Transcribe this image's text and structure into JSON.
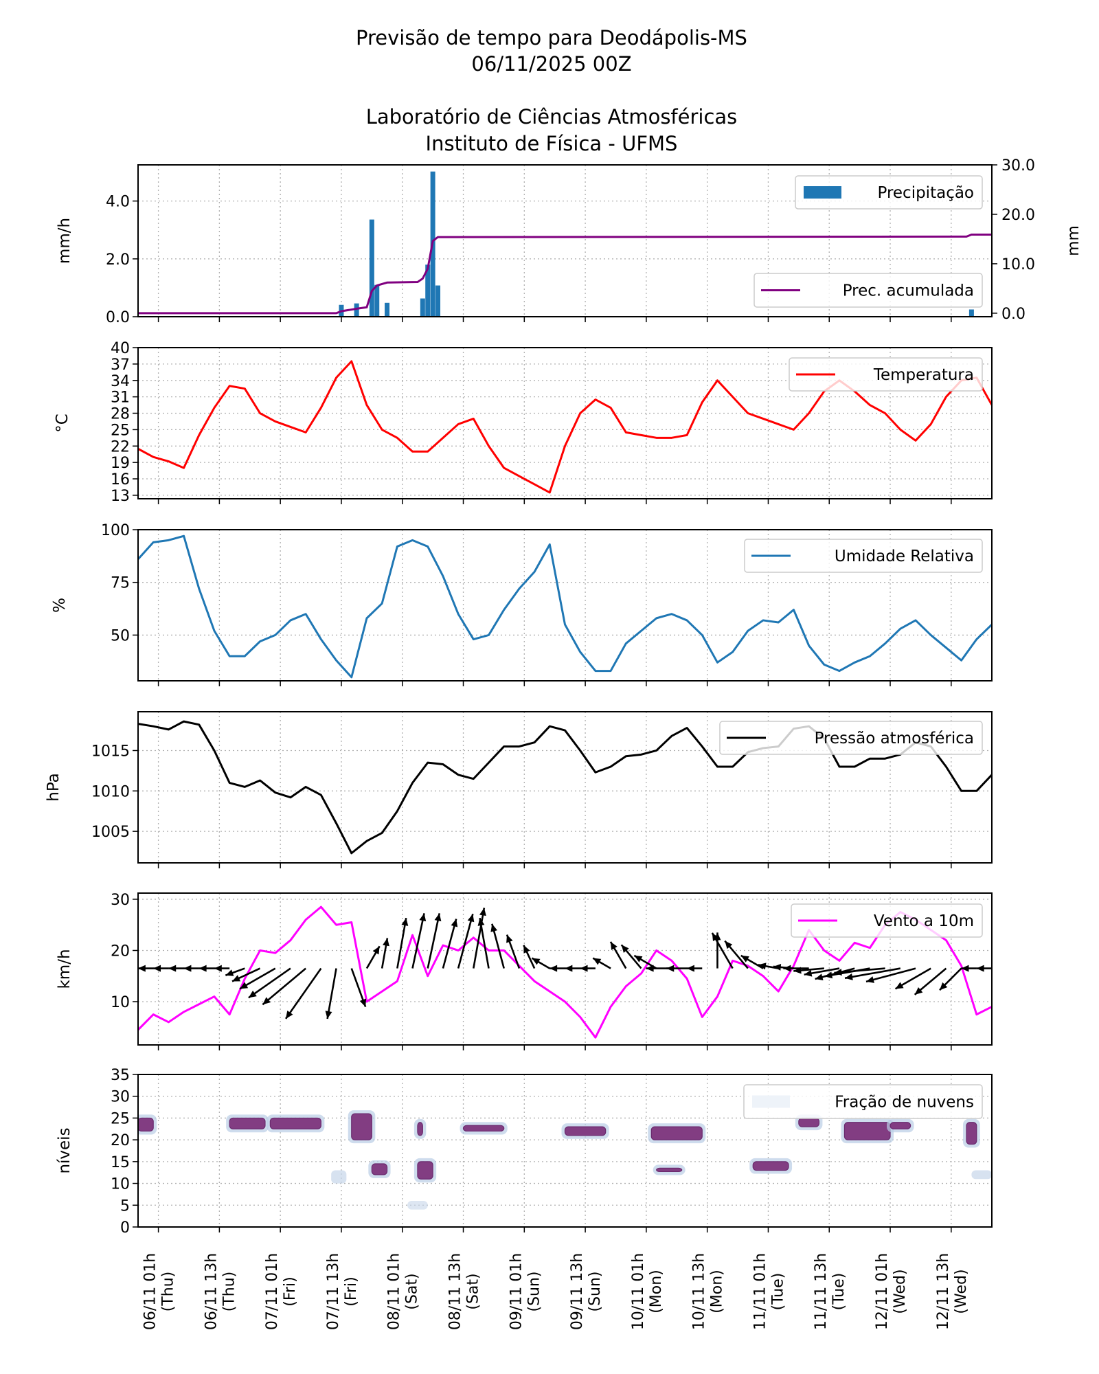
{
  "title": {
    "line1": "Previsão de tempo para Deodápolis-MS",
    "line2": "06/11/2025 00Z",
    "line3": "Laboratório de Ciências Atmosféricas",
    "line4": "Instituto de Física - UFMS"
  },
  "x_axis": {
    "range": [
      "05/11 21h",
      "12/11 21h"
    ],
    "ticks": [
      {
        "date": "06/11 01h",
        "day": "(Thu)"
      },
      {
        "date": "06/11 13h",
        "day": "(Thu)"
      },
      {
        "date": "07/11 01h",
        "day": "(Fri)"
      },
      {
        "date": "07/11 13h",
        "day": "(Fri)"
      },
      {
        "date": "08/11 01h",
        "day": "(Sat)"
      },
      {
        "date": "08/11 13h",
        "day": "(Sat)"
      },
      {
        "date": "09/11 01h",
        "day": "(Sun)"
      },
      {
        "date": "09/11 13h",
        "day": "(Sun)"
      },
      {
        "date": "10/11 01h",
        "day": "(Mon)"
      },
      {
        "date": "10/11 13h",
        "day": "(Mon)"
      },
      {
        "date": "11/11 01h",
        "day": "(Tue)"
      },
      {
        "date": "11/11 13h",
        "day": "(Tue)"
      },
      {
        "date": "12/11 01h",
        "day": "(Wed)"
      },
      {
        "date": "12/11 13h",
        "day": "(Wed)"
      }
    ]
  },
  "times": [
    "05/11 21h",
    "06/11 00h",
    "06/11 03h",
    "06/11 06h",
    "06/11 09h",
    "06/11 12h",
    "06/11 15h",
    "06/11 18h",
    "06/11 21h",
    "07/11 00h",
    "07/11 03h",
    "07/11 06h",
    "07/11 09h",
    "07/11 12h",
    "07/11 15h",
    "07/11 18h",
    "07/11 21h",
    "08/11 00h",
    "08/11 03h",
    "08/11 06h",
    "08/11 09h",
    "08/11 12h",
    "08/11 15h",
    "08/11 18h",
    "08/11 21h",
    "09/11 00h",
    "09/11 03h",
    "09/11 06h",
    "09/11 09h",
    "09/11 12h",
    "09/11 15h",
    "09/11 18h",
    "09/11 21h",
    "10/11 00h",
    "10/11 03h",
    "10/11 06h",
    "10/11 09h",
    "10/11 12h",
    "10/11 15h",
    "10/11 18h",
    "10/11 21h",
    "11/11 00h",
    "11/11 03h",
    "11/11 06h",
    "11/11 09h",
    "11/11 12h",
    "11/11 15h",
    "11/11 18h",
    "11/11 21h",
    "12/11 00h",
    "12/11 03h",
    "12/11 06h",
    "12/11 09h",
    "12/11 12h",
    "12/11 15h",
    "12/11 18h",
    "12/11 21h"
  ],
  "chart_data": [
    {
      "id": "precip",
      "type": "bar",
      "ylabel": "mm/h",
      "ylabel_right": "mm",
      "ylim": [
        0,
        5.25
      ],
      "ylim_right": [
        -0.71,
        30
      ],
      "yticks": [
        "0.0",
        "2.0",
        "4.0"
      ],
      "yticks_right": [
        "0.0",
        "10.0",
        "20.0",
        "30.0"
      ],
      "grid": true,
      "bar_color": "#1f77b4",
      "line_color": "#800080",
      "bars": {
        "name": "Precipitação",
        "points": [
          [
            "07/11 13h",
            0.41
          ],
          [
            "07/11 16h",
            0.46
          ],
          [
            "07/11 19h",
            3.36
          ],
          [
            "07/11 20h",
            1.1
          ],
          [
            "07/11 22h",
            0.48
          ],
          [
            "08/11 05h",
            0.63
          ],
          [
            "08/11 06h",
            1.8
          ],
          [
            "08/11 07h",
            5.02
          ],
          [
            "08/11 08h",
            1.08
          ],
          [
            "12/11 17h",
            0.25
          ]
        ]
      },
      "accumulated": {
        "name": "Prec. acumulada",
        "points": [
          [
            "05/11 21h",
            0
          ],
          [
            "07/11 12h",
            0
          ],
          [
            "07/11 13h",
            0.4
          ],
          [
            "07/11 16h",
            0.9
          ],
          [
            "07/11 18h",
            1.2
          ],
          [
            "07/11 19h",
            4.5
          ],
          [
            "07/11 20h",
            5.6
          ],
          [
            "07/11 22h",
            6.2
          ],
          [
            "08/11 04h",
            6.3
          ],
          [
            "08/11 05h",
            7.0
          ],
          [
            "08/11 06h",
            9.0
          ],
          [
            "08/11 07h",
            14.6
          ],
          [
            "08/11 08h",
            15.4
          ],
          [
            "12/11 16h",
            15.5
          ],
          [
            "12/11 17h",
            15.9
          ],
          [
            "12/11 21h",
            15.9
          ]
        ]
      },
      "legend": [
        "upper-right",
        "lower-right"
      ]
    },
    {
      "id": "temp",
      "type": "line",
      "ylabel": "$^\\circ$C",
      "ylabel_display": "°C",
      "ylim": [
        12.36,
        40
      ],
      "yticks": [
        "13",
        "16",
        "19",
        "22",
        "25",
        "28",
        "31",
        "34",
        "37",
        "40"
      ],
      "grid": true,
      "color": "#ff0000",
      "series": [
        {
          "name": "Temperatura",
          "values": [
            21.5,
            20,
            19.2,
            18,
            24,
            29,
            33,
            32.5,
            28,
            26.5,
            25.5,
            24.5,
            29,
            34.5,
            37.5,
            29.5,
            25,
            23.5,
            21,
            21,
            23.5,
            26,
            27,
            22,
            18,
            16.5,
            15,
            13.5,
            22,
            28,
            30.5,
            29,
            24.5,
            24,
            23.5,
            23.5,
            24,
            30,
            34,
            31,
            28,
            27,
            26,
            25,
            28,
            32,
            34,
            32,
            29.5,
            28,
            25,
            23,
            26,
            31,
            34,
            34.5,
            29.5
          ]
        }
      ],
      "legend": "upper-right"
    },
    {
      "id": "humidity",
      "type": "line",
      "ylabel": "%",
      "ylim": [
        28.3,
        100
      ],
      "yticks": [
        "50",
        "75",
        "100"
      ],
      "grid": true,
      "color": "#1f77b4",
      "series": [
        {
          "name": "Umidade Relativa",
          "values": [
            86,
            94,
            95,
            97,
            72,
            52,
            40,
            40,
            47,
            50,
            57,
            60,
            48,
            38,
            30,
            58,
            65,
            92,
            95,
            92,
            78,
            60,
            48,
            50,
            62,
            72,
            80,
            93,
            55,
            42,
            33,
            33,
            46,
            52,
            58,
            60,
            57,
            50,
            37,
            42,
            52,
            57,
            56,
            62,
            45,
            36,
            33,
            37,
            40,
            46,
            53,
            57,
            50,
            44,
            38,
            48,
            55
          ]
        }
      ],
      "legend": "upper-right"
    },
    {
      "id": "pressure",
      "type": "line",
      "ylabel": "hPa",
      "ylim": [
        1001.1,
        1019.8
      ],
      "yticks": [
        "1005",
        "1010",
        "1015"
      ],
      "grid": true,
      "color": "#000000",
      "series": [
        {
          "name": "Pressão atmosférica",
          "values": [
            1018.3,
            1018,
            1017.6,
            1018.6,
            1018.2,
            1015,
            1011,
            1010.5,
            1011.3,
            1009.8,
            1009.2,
            1010.5,
            1009.5,
            1006,
            1002.3,
            1003.8,
            1004.8,
            1007.5,
            1011,
            1013.5,
            1013.3,
            1012,
            1011.5,
            1013.5,
            1015.5,
            1015.5,
            1016,
            1018,
            1017.5,
            1015,
            1012.3,
            1013,
            1014.3,
            1014.5,
            1015,
            1016.8,
            1017.8,
            1015.5,
            1013,
            1013,
            1014.8,
            1015.3,
            1015.5,
            1017.7,
            1018,
            1016.5,
            1013,
            1013,
            1014,
            1014,
            1014.5,
            1016,
            1015.5,
            1013,
            1010,
            1010,
            1012
          ]
        }
      ],
      "legend": "upper-right"
    },
    {
      "id": "wind",
      "type": "line",
      "ylabel": "km/h",
      "ylim": [
        1.55,
        31.2
      ],
      "yticks": [
        "10",
        "20",
        "30"
      ],
      "grid": true,
      "color": "#ff00ff",
      "series": [
        {
          "name": "Vento a 10m",
          "values": [
            4.5,
            7.5,
            6,
            8,
            9.5,
            11,
            7.5,
            14.5,
            20,
            19.5,
            22,
            26,
            28.5,
            25,
            25.5,
            10,
            12,
            14,
            23,
            15,
            21,
            20,
            22.5,
            20,
            20,
            17,
            14,
            12,
            10,
            7,
            3,
            9,
            13,
            15.5,
            20,
            18,
            14.5,
            7,
            11,
            18,
            17,
            15,
            12,
            17,
            24,
            20,
            18,
            21.5,
            20.5,
            25,
            27.5,
            26,
            24,
            22,
            17,
            7.5,
            9
          ]
        }
      ],
      "arrows": {
        "color": "#000000",
        "direction_deg": [
          180,
          180,
          180,
          180,
          180,
          180,
          180,
          200,
          205,
          210,
          215,
          220,
          235,
          260,
          290,
          60,
          80,
          80,
          78,
          78,
          75,
          75,
          80,
          100,
          105,
          110,
          115,
          150,
          180,
          180,
          180,
          150,
          120,
          130,
          150,
          180,
          180,
          180,
          90,
          120,
          130,
          150,
          170,
          175,
          180,
          185,
          190,
          195,
          190,
          185,
          190,
          195,
          210,
          220,
          225,
          180,
          180
        ],
        "length": [
          3,
          3,
          3,
          3,
          3,
          3,
          3,
          4,
          6,
          8,
          10,
          11,
          12,
          10,
          8,
          5,
          6,
          10,
          11,
          11,
          10,
          11,
          12,
          10,
          9,
          7,
          5,
          4,
          3,
          3,
          3,
          4,
          6,
          6,
          5,
          5,
          4,
          3,
          7,
          8,
          7,
          5,
          4,
          4,
          5,
          6,
          7,
          8,
          9,
          10,
          11,
          10,
          8,
          8,
          6,
          3,
          3
        ]
      },
      "legend": "upper-right"
    },
    {
      "id": "clouds",
      "type": "heatmap",
      "ylabel": "níveis",
      "ylim": [
        0,
        35
      ],
      "yticks": [
        "0",
        "5",
        "10",
        "15",
        "20",
        "25",
        "30",
        "35"
      ],
      "grid": true,
      "color": "#823d82",
      "series": [
        {
          "name": "Fração de nuvens"
        }
      ],
      "patches": [
        {
          "start": "05/11 21h",
          "end": "06/11 00h",
          "levels": [
            22,
            25
          ],
          "fraction": 0.9
        },
        {
          "start": "06/11 15h",
          "end": "06/11 22h",
          "levels": [
            22.5,
            25
          ],
          "fraction": 0.9
        },
        {
          "start": "06/11 23h",
          "end": "07/11 09h",
          "levels": [
            22.5,
            25
          ],
          "fraction": 0.9
        },
        {
          "start": "07/11 15h",
          "end": "07/11 19h",
          "levels": [
            20,
            26
          ],
          "fraction": 0.9
        },
        {
          "start": "08/11 04h",
          "end": "08/11 05h",
          "levels": [
            21,
            24
          ],
          "fraction": 0.9
        },
        {
          "start": "08/11 13h",
          "end": "08/11 21h",
          "levels": [
            22,
            23.3
          ],
          "fraction": 0.9
        },
        {
          "start": "09/11 09h",
          "end": "09/11 17h",
          "levels": [
            21,
            23
          ],
          "fraction": 0.9
        },
        {
          "start": "10/11 02h",
          "end": "10/11 12h",
          "levels": [
            20,
            23
          ],
          "fraction": 0.9
        },
        {
          "start": "11/11 07h",
          "end": "11/11 11h",
          "levels": [
            23,
            25
          ],
          "fraction": 0.9
        },
        {
          "start": "11/11 16h",
          "end": "12/11 01h",
          "levels": [
            20,
            24
          ],
          "fraction": 0.9
        },
        {
          "start": "12/11 01h",
          "end": "12/11 05h",
          "levels": [
            22.5,
            24
          ],
          "fraction": 0.9
        },
        {
          "start": "12/11 16h",
          "end": "12/11 18h",
          "levels": [
            19,
            24
          ],
          "fraction": 0.8
        },
        {
          "start": "08/11 04h",
          "end": "08/11 07h",
          "levels": [
            11,
            15
          ],
          "fraction": 0.9
        },
        {
          "start": "07/11 19h",
          "end": "07/11 22h",
          "levels": [
            12,
            14.5
          ],
          "fraction": 0.7
        },
        {
          "start": "10/11 03h",
          "end": "10/11 08h",
          "levels": [
            12.7,
            13.5
          ],
          "fraction": 0.9
        },
        {
          "start": "10/11 22h",
          "end": "11/11 05h",
          "levels": [
            13,
            15
          ],
          "fraction": 0.7
        },
        {
          "start": "07/11 11h",
          "end": "07/11 14h",
          "levels": [
            10,
            13
          ],
          "fraction": 0.3
        },
        {
          "start": "12/11 17h",
          "end": "12/11 21h",
          "levels": [
            11,
            13
          ],
          "fraction": 0.3
        },
        {
          "start": "08/11 02h",
          "end": "08/11 06h",
          "levels": [
            4,
            6
          ],
          "fraction": 0.2
        }
      ],
      "legend": "upper-right"
    }
  ]
}
